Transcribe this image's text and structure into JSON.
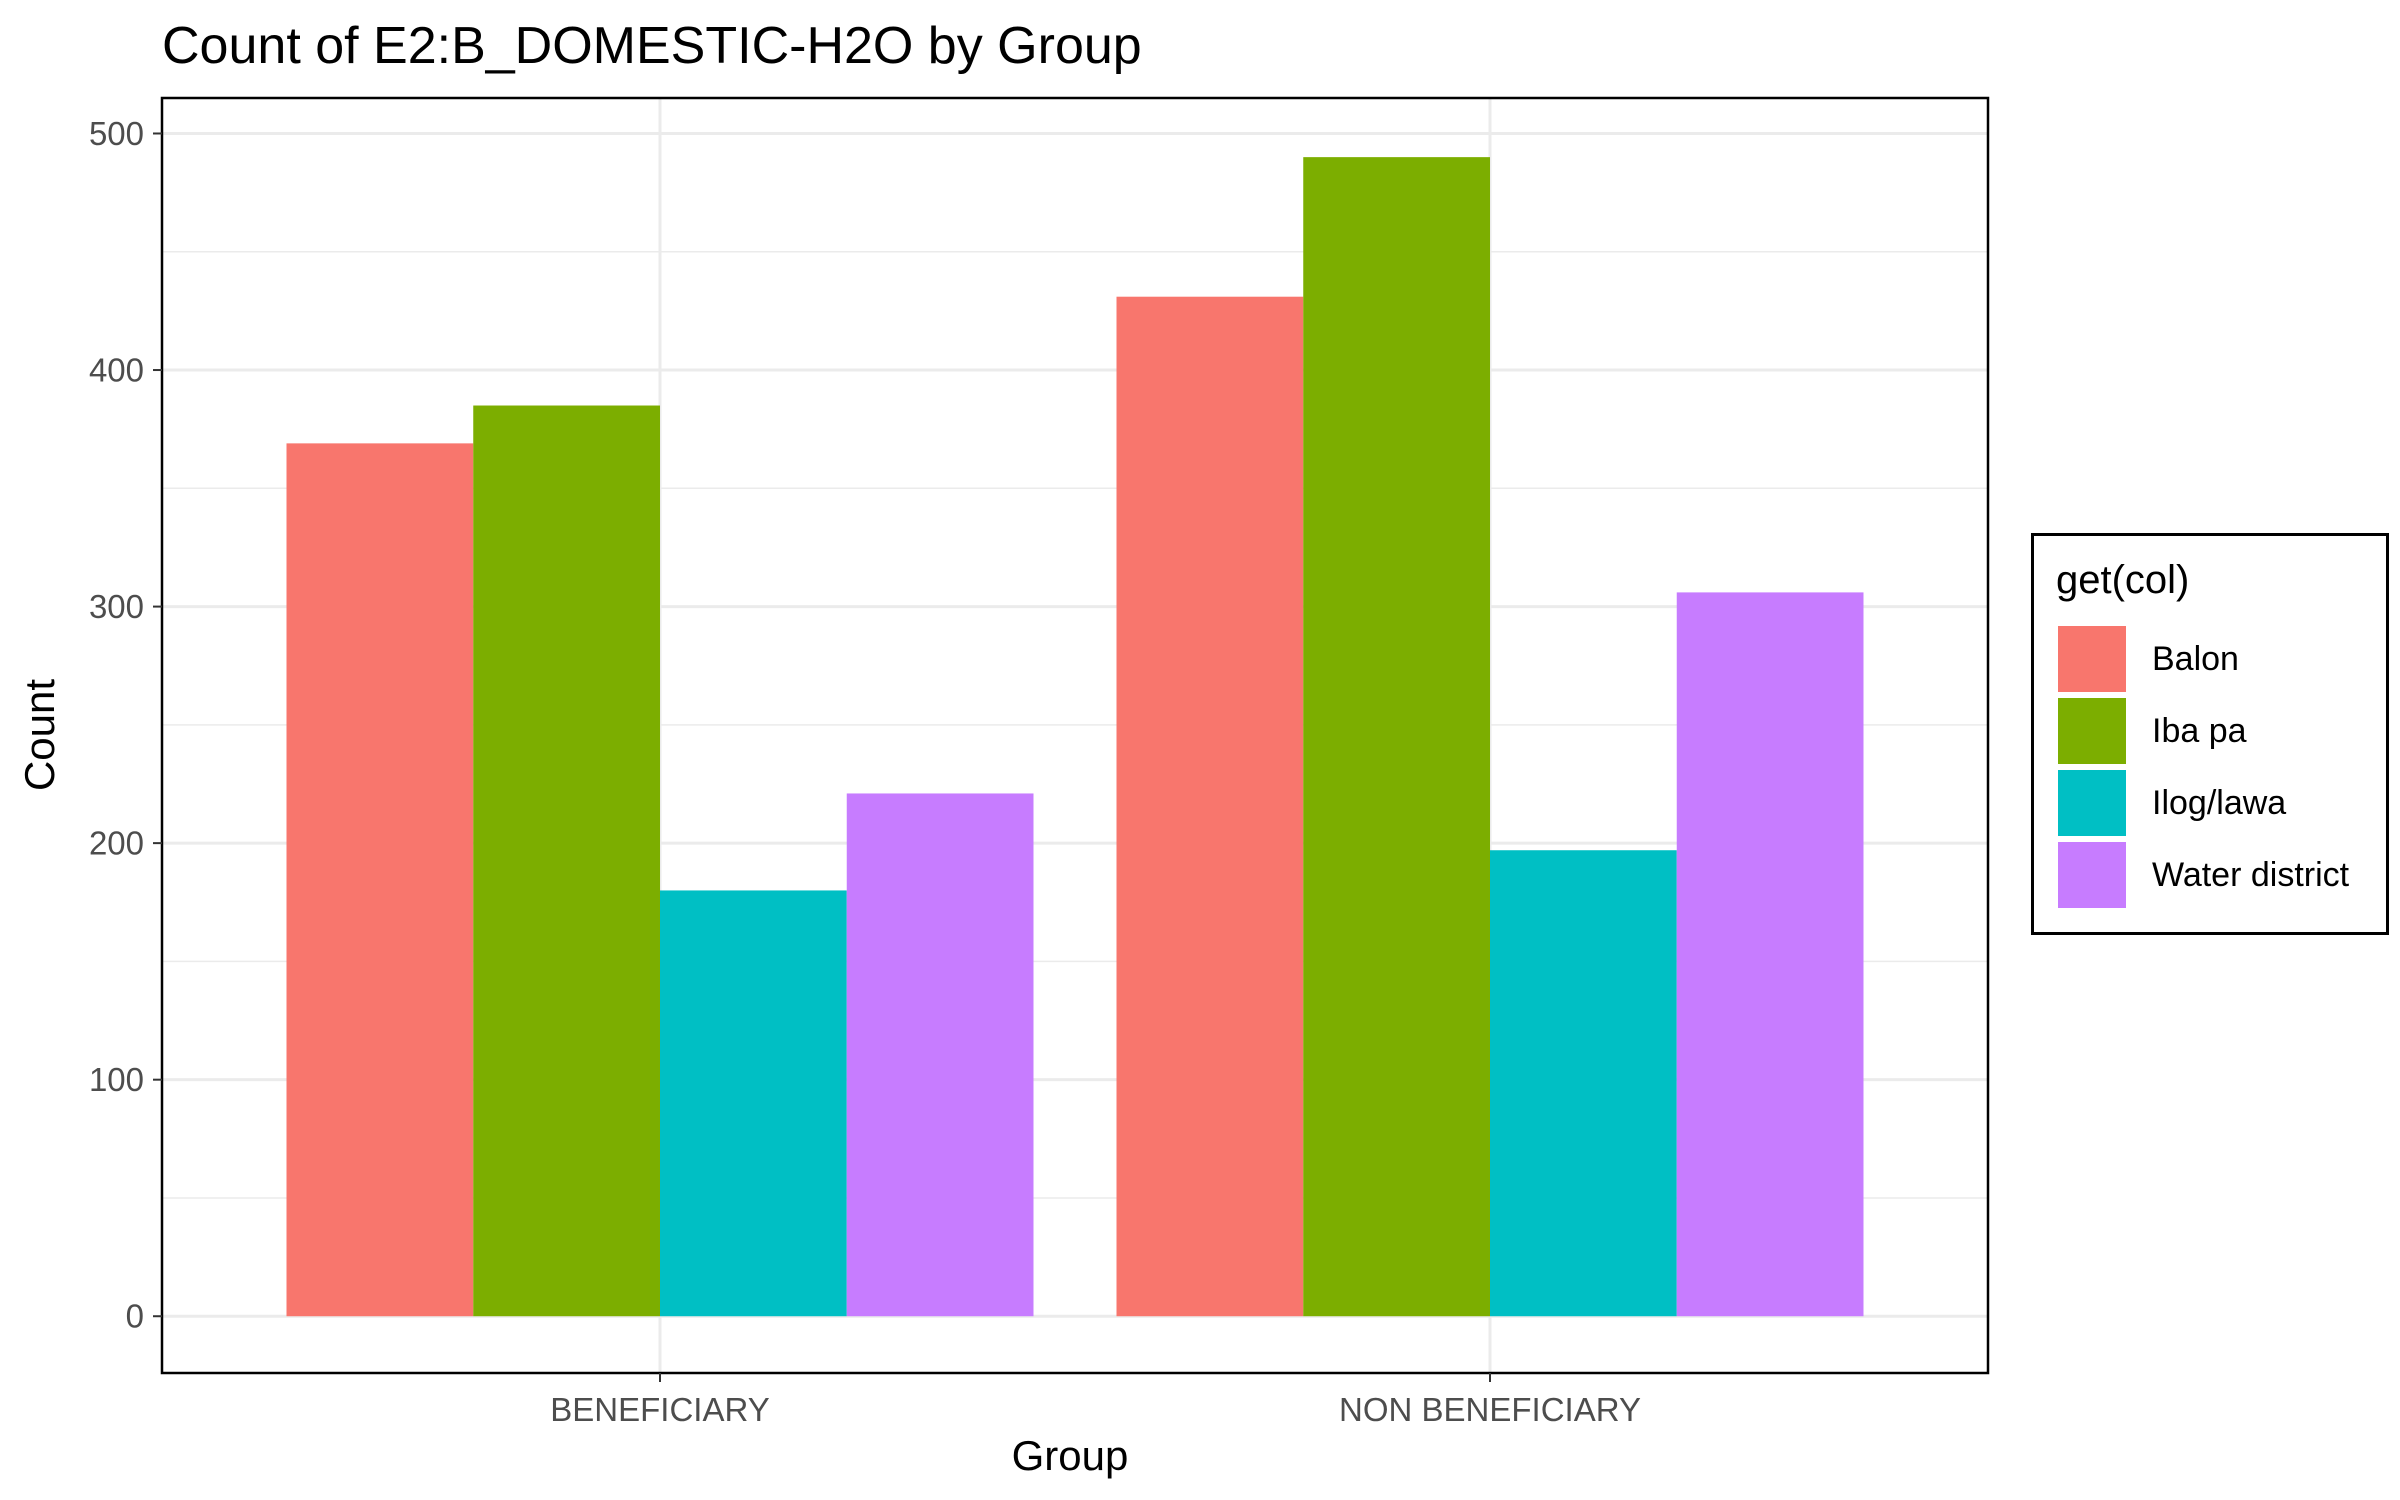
{
  "chart_data": {
    "type": "bar",
    "title": "Count of E2:B_DOMESTIC-H2O by Group",
    "xlabel": "Group",
    "ylabel": "Count",
    "categories": [
      "BENEFICIARY",
      "NON BENEFICIARY"
    ],
    "ylim": [
      -24,
      515
    ],
    "yticks": [
      0,
      100,
      200,
      300,
      400,
      500
    ],
    "grid": true,
    "legend": {
      "title": "get(col)",
      "placement": "right"
    },
    "series": [
      {
        "name": "Balon",
        "color": "#F8766D",
        "values": [
          369,
          431
        ]
      },
      {
        "name": "Iba pa",
        "color": "#7CAE00",
        "values": [
          385,
          490
        ]
      },
      {
        "name": "Ilog/lawa",
        "color": "#00BFC4",
        "values": [
          180,
          197
        ]
      },
      {
        "name": "Water district",
        "color": "#C77CFF",
        "values": [
          221,
          306
        ]
      }
    ]
  }
}
